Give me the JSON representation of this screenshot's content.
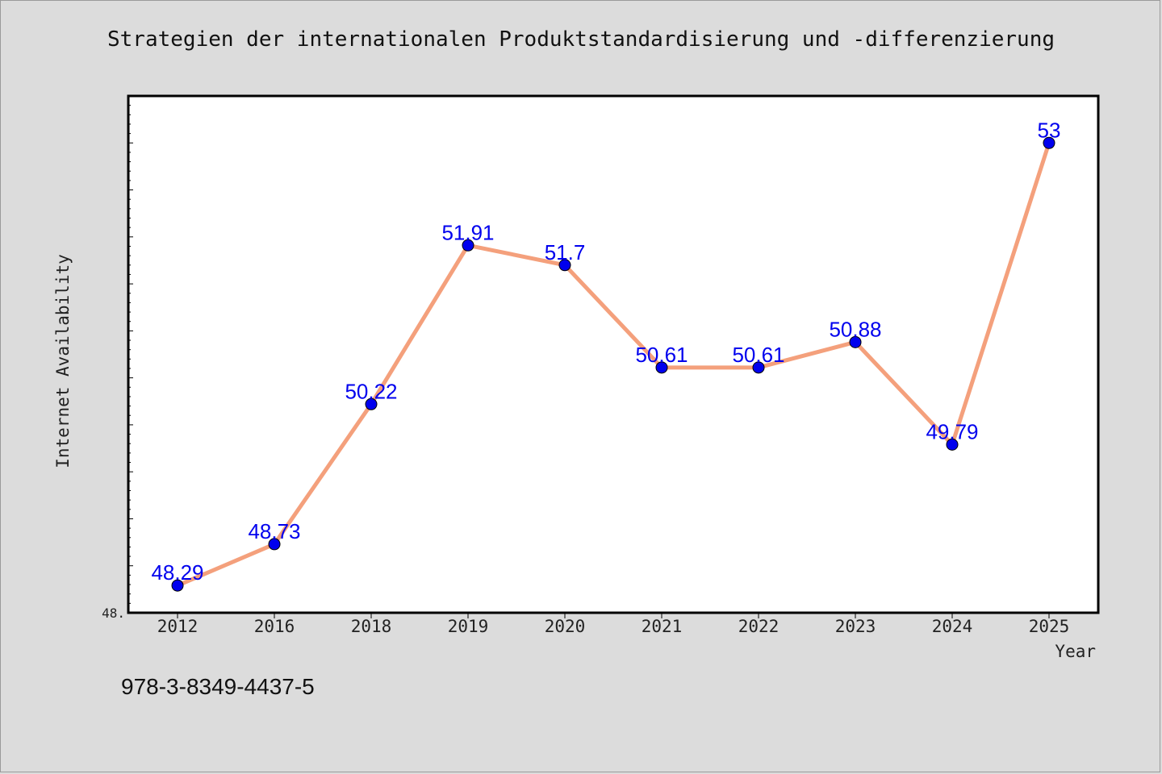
{
  "chart_data": {
    "type": "line",
    "title": "Strategien der internationalen Produktstandardisierung und -differenzierung",
    "xlabel": "Year",
    "ylabel": "Internet Availability",
    "categories": [
      "2012",
      "2016",
      "2018",
      "2019",
      "2020",
      "2021",
      "2022",
      "2023",
      "2024",
      "2025"
    ],
    "series": [
      {
        "values": [
          48.29,
          48.73,
          50.22,
          51.91,
          51.7,
          50.61,
          50.61,
          50.88,
          49.79,
          53
        ],
        "data_labels": [
          "48.29",
          "48.73",
          "50.22",
          "51.91",
          "51.7",
          "50.61",
          "50.61",
          "50.88",
          "49.79",
          "53"
        ],
        "line_color": "#f4a07c",
        "marker_color": "#0000ee",
        "label_color": "#0000ee"
      }
    ],
    "y_tick_label": "48.",
    "ylim": [
      48,
      53.5
    ],
    "grid": false
  },
  "footnote": "978-3-8349-4437-5"
}
